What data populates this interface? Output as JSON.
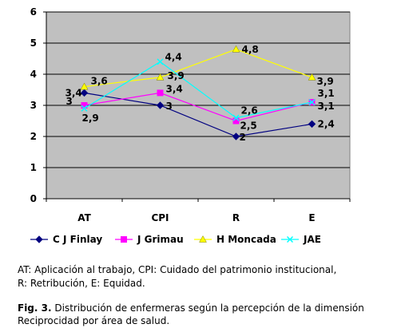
{
  "chart_data": {
    "type": "line",
    "categories": [
      "AT",
      "CPI",
      "R",
      "E"
    ],
    "ylim": [
      0,
      6
    ],
    "yticks": [
      0,
      1,
      2,
      3,
      4,
      5,
      6
    ],
    "grid": true,
    "legend_position": "bottom",
    "series": [
      {
        "name": "C J Finlay",
        "values": [
          3.4,
          3,
          2,
          2.4
        ],
        "labels": [
          "3,4",
          "3",
          "2",
          "2,4"
        ],
        "color": "#000080",
        "marker": "diamond"
      },
      {
        "name": "J Grimau",
        "values": [
          3,
          3.4,
          2.5,
          3.1
        ],
        "labels": [
          "3",
          "3,4",
          "2,5",
          "3,1"
        ],
        "color": "#ff00ff",
        "marker": "square"
      },
      {
        "name": "H Moncada",
        "values": [
          3.6,
          3.9,
          4.8,
          3.9
        ],
        "labels": [
          "3,6",
          "3,9",
          "4,8",
          "3,9"
        ],
        "color": "#ffff00",
        "marker": "triangle"
      },
      {
        "name": "JAE",
        "values": [
          2.9,
          4.4,
          2.6,
          3.1
        ],
        "labels": [
          "2,9",
          "4,4",
          "2,6",
          "3,1"
        ],
        "color": "#00ffff",
        "marker": "x"
      }
    ]
  },
  "notes": {
    "abbrev_line1": "AT: Aplicación al trabajo, CPI: Cuidado del patrimonio institucional,",
    "abbrev_line2": "R: Retribución, E: Equidad."
  },
  "caption": {
    "label": "Fig. 3.",
    "text": " Distribución de enfermeras según la percepción de la dimensión Reciprocidad por área de salud."
  }
}
